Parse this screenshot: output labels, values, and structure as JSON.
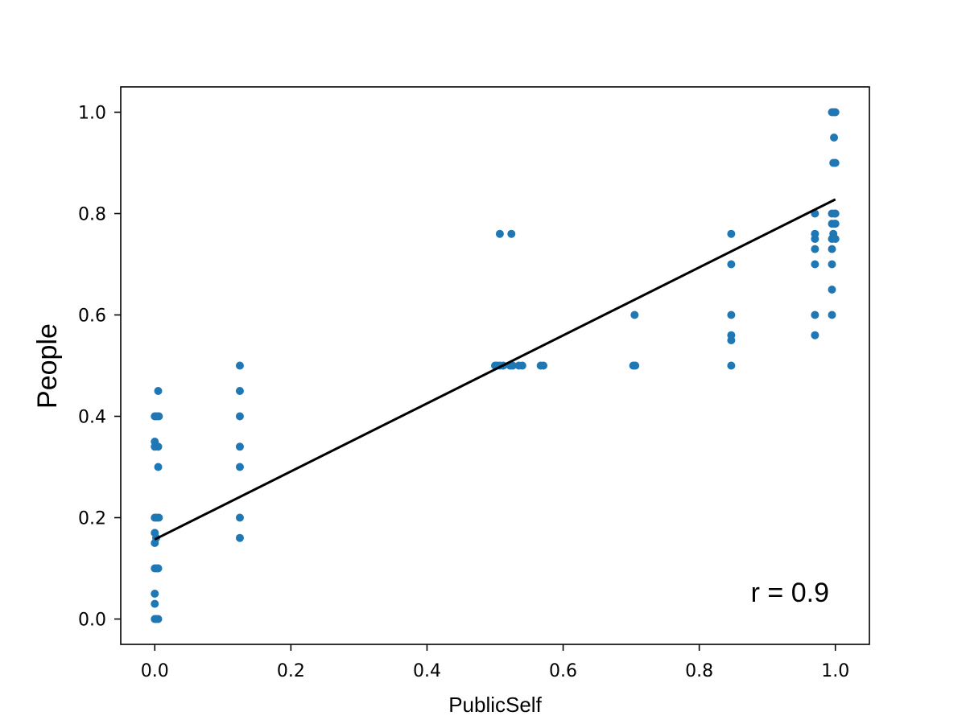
{
  "chart_data": {
    "type": "scatter",
    "title": "",
    "xlabel": "PublicSelf",
    "ylabel": "People",
    "xlim": [
      -0.05,
      1.05
    ],
    "ylim": [
      -0.05,
      1.05
    ],
    "xticks": [
      0.0,
      0.2,
      0.4,
      0.6,
      0.8,
      1.0
    ],
    "xtick_labels": [
      "0.0",
      "0.2",
      "0.4",
      "0.6",
      "0.8",
      "1.0"
    ],
    "yticks": [
      0.0,
      0.2,
      0.4,
      0.6,
      0.8,
      1.0
    ],
    "ytick_labels": [
      "0.0",
      "0.2",
      "0.4",
      "0.6",
      "0.8",
      "1.0"
    ],
    "grid": false,
    "point_color": "#1f77b4",
    "line_color": "#000000",
    "annotation": "r = 0.9",
    "series": [
      {
        "points": [
          [
            0.0,
            0.0
          ],
          [
            0.002,
            0.0
          ],
          [
            0.005,
            0.0
          ],
          [
            0.0,
            0.03
          ],
          [
            0.0,
            0.05
          ],
          [
            0.0,
            0.1
          ],
          [
            0.003,
            0.1
          ],
          [
            0.005,
            0.1
          ],
          [
            0.0,
            0.15
          ],
          [
            0.002,
            0.16
          ],
          [
            0.0,
            0.17
          ],
          [
            0.0,
            0.2
          ],
          [
            0.003,
            0.2
          ],
          [
            0.006,
            0.2
          ],
          [
            0.005,
            0.3
          ],
          [
            0.0,
            0.34
          ],
          [
            0.005,
            0.34
          ],
          [
            0.0,
            0.35
          ],
          [
            0.0,
            0.4
          ],
          [
            0.003,
            0.4
          ],
          [
            0.006,
            0.4
          ],
          [
            0.005,
            0.45
          ],
          [
            0.125,
            0.16
          ],
          [
            0.125,
            0.2
          ],
          [
            0.125,
            0.3
          ],
          [
            0.125,
            0.34
          ],
          [
            0.125,
            0.4
          ],
          [
            0.125,
            0.45
          ],
          [
            0.125,
            0.5
          ],
          [
            0.5,
            0.5
          ],
          [
            0.503,
            0.5
          ],
          [
            0.507,
            0.5
          ],
          [
            0.512,
            0.5
          ],
          [
            0.522,
            0.5
          ],
          [
            0.526,
            0.5
          ],
          [
            0.535,
            0.5
          ],
          [
            0.54,
            0.5
          ],
          [
            0.567,
            0.5
          ],
          [
            0.571,
            0.5
          ],
          [
            0.507,
            0.76
          ],
          [
            0.524,
            0.76
          ],
          [
            0.703,
            0.5
          ],
          [
            0.706,
            0.5
          ],
          [
            0.705,
            0.6
          ],
          [
            0.847,
            0.5
          ],
          [
            0.847,
            0.55
          ],
          [
            0.847,
            0.56
          ],
          [
            0.847,
            0.6
          ],
          [
            0.847,
            0.7
          ],
          [
            0.847,
            0.76
          ],
          [
            0.97,
            0.56
          ],
          [
            0.97,
            0.6
          ],
          [
            0.97,
            0.7
          ],
          [
            0.97,
            0.73
          ],
          [
            0.97,
            0.75
          ],
          [
            0.97,
            0.76
          ],
          [
            0.97,
            0.8
          ],
          [
            0.995,
            0.6
          ],
          [
            0.995,
            0.65
          ],
          [
            0.995,
            0.7
          ],
          [
            0.995,
            0.73
          ],
          [
            0.995,
            0.75
          ],
          [
            0.997,
            0.76
          ],
          [
            0.995,
            0.78
          ],
          [
            0.999,
            0.78
          ],
          [
            0.995,
            0.8
          ],
          [
            0.999,
            0.8
          ],
          [
            1.0,
            0.75
          ],
          [
            1.0,
            0.78
          ],
          [
            1.0,
            0.8
          ],
          [
            0.997,
            0.9
          ],
          [
            1.0,
            0.9
          ],
          [
            0.998,
            0.95
          ],
          [
            0.995,
            1.0
          ],
          [
            0.998,
            1.0
          ],
          [
            1.0,
            1.0
          ]
        ]
      }
    ],
    "fit_line": {
      "x": [
        0.0,
        1.0
      ],
      "y": [
        0.157,
        0.828
      ]
    }
  }
}
